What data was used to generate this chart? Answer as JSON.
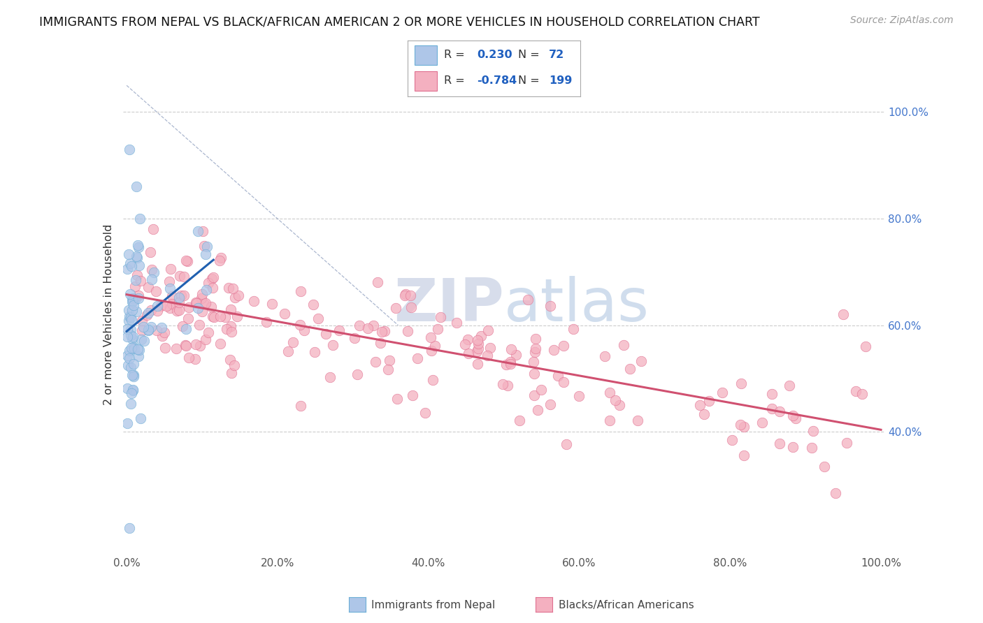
{
  "title": "IMMIGRANTS FROM NEPAL VS BLACK/AFRICAN AMERICAN 2 OR MORE VEHICLES IN HOUSEHOLD CORRELATION CHART",
  "source": "Source: ZipAtlas.com",
  "ylabel": "2 or more Vehicles in Household",
  "r_nepal": 0.23,
  "n_nepal": 72,
  "r_black": -0.784,
  "n_black": 199,
  "nepal_color": "#aec6e8",
  "nepal_edge": "#6baed6",
  "black_color": "#f4b0c0",
  "black_edge": "#e07090",
  "nepal_trend_color": "#2060b0",
  "black_trend_color": "#d05070",
  "watermark_zip": "ZIP",
  "watermark_atlas": "atlas",
  "legend_text_color": "#333333",
  "legend_value_color": "#2060c0",
  "ytick_labels": [
    "40.0%",
    "60.0%",
    "80.0%",
    "100.0%"
  ],
  "ytick_vals": [
    0.4,
    0.6,
    0.8,
    1.0
  ],
  "xtick_labels": [
    "0.0%",
    "20.0%",
    "40.0%",
    "60.0%",
    "80.0%",
    "100.0%"
  ],
  "xtick_vals": [
    0.0,
    0.2,
    0.4,
    0.6,
    0.8,
    1.0
  ]
}
